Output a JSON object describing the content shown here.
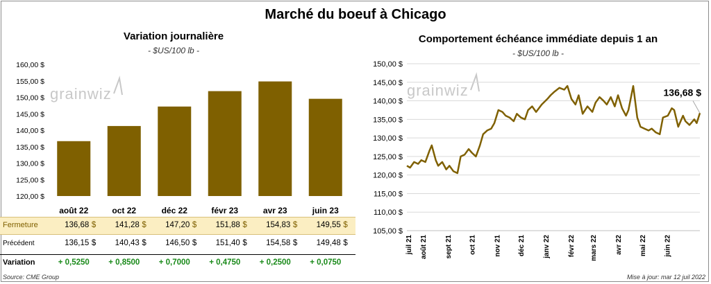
{
  "title": "Marché du boeuf à Chicago",
  "left_panel": {
    "title": "Variation  journalière",
    "unit": "- $US/100 lb -",
    "watermark": "grainwiz"
  },
  "right_panel": {
    "title": "Comportement  échéance immédiate depuis 1 an",
    "unit": "- $US/100 lb -",
    "watermark": "grainwiz",
    "last_value_label": "136,68 $"
  },
  "table": {
    "rows": [
      {
        "label": "Fermeture",
        "values": [
          "136,68",
          "141,28",
          "147,20",
          "151,88",
          "154,83",
          "149,55"
        ],
        "currency": "$"
      },
      {
        "label": "Précédent",
        "values": [
          "136,15",
          "140,43",
          "146,50",
          "151,40",
          "154,58",
          "149,48"
        ],
        "currency": "$"
      },
      {
        "label": "Variation",
        "values": [
          "+ 0,5250",
          "+ 0,8500",
          "+ 0,7000",
          "+ 0,4750",
          "+ 0,2500",
          "+ 0,0750"
        ]
      }
    ]
  },
  "footer": {
    "source": "Source: CME Group",
    "updated": "Mise à jour: mar 12 juil 2022"
  },
  "colors": {
    "bar": "#7f6000",
    "line": "#7f6000",
    "highlight_row": "#fbeec2",
    "positive": "#1a8a1a",
    "grid": "#d9d9d9"
  },
  "chart_data": [
    {
      "type": "bar",
      "title": "Variation  journalière",
      "subtitle": "- $US/100 lb -",
      "categories": [
        "août 22",
        "oct 22",
        "déc 22",
        "févr 23",
        "avr 23",
        "juin 23"
      ],
      "values": [
        136.68,
        141.28,
        147.2,
        151.88,
        154.83,
        149.55
      ],
      "ylim": [
        120,
        160
      ],
      "yticks": [
        120,
        125,
        130,
        135,
        140,
        145,
        150,
        155,
        160
      ],
      "ytick_labels": [
        "120,00 $",
        "125,00 $",
        "130,00 $",
        "135,00 $",
        "140,00 $",
        "145,00 $",
        "150,00 $",
        "155,00 $",
        "160,00 $"
      ],
      "grid": false
    },
    {
      "type": "line",
      "title": "Comportement  échéance immédiate depuis 1 an",
      "subtitle": "- $US/100 lb -",
      "ylim": [
        105,
        150
      ],
      "yticks": [
        105,
        110,
        115,
        120,
        125,
        130,
        135,
        140,
        145,
        150
      ],
      "ytick_labels": [
        "105,00 $",
        "110,00 $",
        "115,00 $",
        "120,00 $",
        "125,00 $",
        "130,00 $",
        "135,00 $",
        "140,00 $",
        "145,00 $",
        "150,00 $"
      ],
      "xtick_labels": [
        "juil 21",
        "août 21",
        "sept 21",
        "oct 21",
        "nov 21",
        "déc 21",
        "janv 22",
        "févr 22",
        "mars 22",
        "avr 22",
        "mai 22",
        "juin 22"
      ],
      "x_start": "2021-07-12",
      "x_end": "2022-07-12",
      "xtick_dates": [
        "2021-07-01",
        "2021-08-01",
        "2021-09-01",
        "2021-10-01",
        "2021-11-01",
        "2021-12-01",
        "2022-01-01",
        "2022-02-01",
        "2022-03-01",
        "2022-04-01",
        "2022-05-01",
        "2022-06-01"
      ],
      "grid": true,
      "annotation": "136,68 $",
      "series": [
        {
          "x": [
            "2021-07-12",
            "2021-07-16",
            "2021-07-21",
            "2021-07-26",
            "2021-07-30",
            "2021-08-04",
            "2021-08-09",
            "2021-08-12",
            "2021-08-17",
            "2021-08-20",
            "2021-08-25",
            "2021-08-30",
            "2021-09-03",
            "2021-09-08",
            "2021-09-13",
            "2021-09-17",
            "2021-09-22",
            "2021-09-27",
            "2021-10-01",
            "2021-10-06",
            "2021-10-11",
            "2021-10-15",
            "2021-10-20",
            "2021-10-25",
            "2021-10-29",
            "2021-11-03",
            "2021-11-08",
            "2021-11-12",
            "2021-11-17",
            "2021-11-22",
            "2021-11-26",
            "2021-12-01",
            "2021-12-06",
            "2021-12-10",
            "2021-12-15",
            "2021-12-20",
            "2021-12-27",
            "2022-01-03",
            "2022-01-07",
            "2022-01-12",
            "2022-01-18",
            "2022-01-24",
            "2022-01-28",
            "2022-02-02",
            "2022-02-07",
            "2022-02-11",
            "2022-02-16",
            "2022-02-22",
            "2022-02-28",
            "2022-03-04",
            "2022-03-09",
            "2022-03-14",
            "2022-03-18",
            "2022-03-23",
            "2022-03-28",
            "2022-04-01",
            "2022-04-06",
            "2022-04-11",
            "2022-04-14",
            "2022-04-20",
            "2022-04-25",
            "2022-04-29",
            "2022-05-04",
            "2022-05-09",
            "2022-05-13",
            "2022-05-18",
            "2022-05-23",
            "2022-05-27",
            "2022-06-02",
            "2022-06-07",
            "2022-06-10",
            "2022-06-15",
            "2022-06-21",
            "2022-06-24",
            "2022-06-29",
            "2022-07-05",
            "2022-07-08",
            "2022-07-12"
          ],
          "y": [
            122.5,
            122.0,
            123.5,
            123.0,
            124.0,
            123.5,
            126.5,
            128.0,
            124.0,
            122.5,
            123.5,
            121.5,
            122.5,
            121.0,
            120.5,
            125.0,
            125.5,
            127.0,
            126.0,
            125.0,
            128.0,
            131.0,
            132.0,
            132.5,
            134.0,
            137.5,
            137.0,
            136.0,
            135.5,
            134.5,
            136.5,
            135.5,
            135.0,
            137.5,
            138.5,
            137.0,
            139.0,
            140.5,
            141.5,
            142.5,
            143.5,
            143.0,
            144.0,
            140.5,
            139.0,
            141.5,
            136.5,
            138.5,
            137.0,
            139.5,
            141.0,
            140.0,
            139.0,
            141.0,
            138.5,
            141.5,
            138.0,
            136.0,
            137.5,
            144.0,
            135.5,
            133.0,
            132.5,
            132.0,
            132.5,
            131.5,
            131.0,
            135.5,
            136.0,
            138.0,
            137.5,
            133.0,
            136.0,
            134.5,
            133.5,
            135.0,
            134.0,
            136.68
          ]
        }
      ]
    }
  ]
}
